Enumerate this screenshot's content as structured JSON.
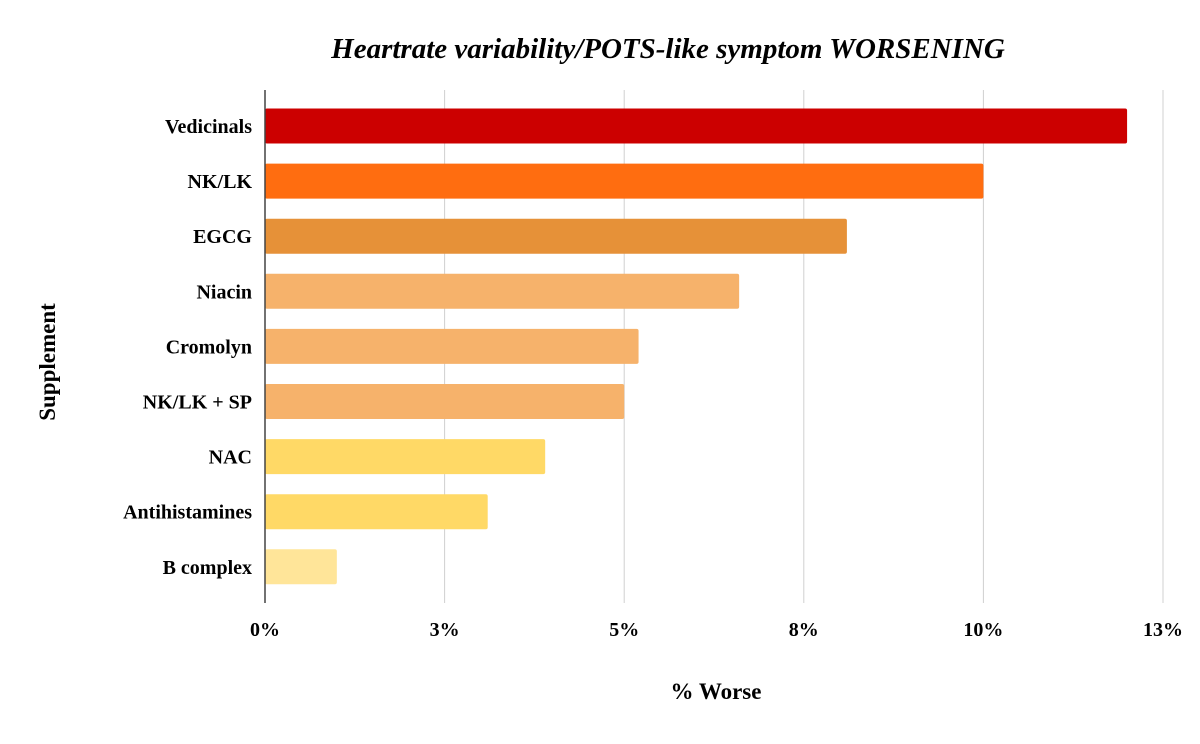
{
  "chart_data": {
    "type": "bar",
    "orientation": "horizontal",
    "title": "Heartrate variability/POTS-like symptom WORSENING",
    "xlabel": "% Worse",
    "ylabel": "Supplement",
    "categories": [
      "Vedicinals",
      "NK/LK",
      "EGCG",
      "Niacin",
      "Cromolyn",
      "NK/LK + SP",
      "NAC",
      "Antihistamines",
      "B complex"
    ],
    "values": [
      12.0,
      10.0,
      8.1,
      6.6,
      5.2,
      5.0,
      3.9,
      3.1,
      1.0
    ],
    "value_unit": "%",
    "colors": [
      "#cc0000",
      "#ff6d10",
      "#e69138",
      "#f6b26b",
      "#f6b26b",
      "#f6b26b",
      "#ffd966",
      "#ffd966",
      "#ffe599"
    ],
    "xlim": [
      0,
      12.5
    ],
    "xticks": [
      0,
      2.5,
      5,
      7.5,
      10,
      12.5
    ],
    "xtick_labels": [
      "0%",
      "3%",
      "5%",
      "8%",
      "10%",
      "13%"
    ],
    "grid": "vertical",
    "legend": "none"
  }
}
